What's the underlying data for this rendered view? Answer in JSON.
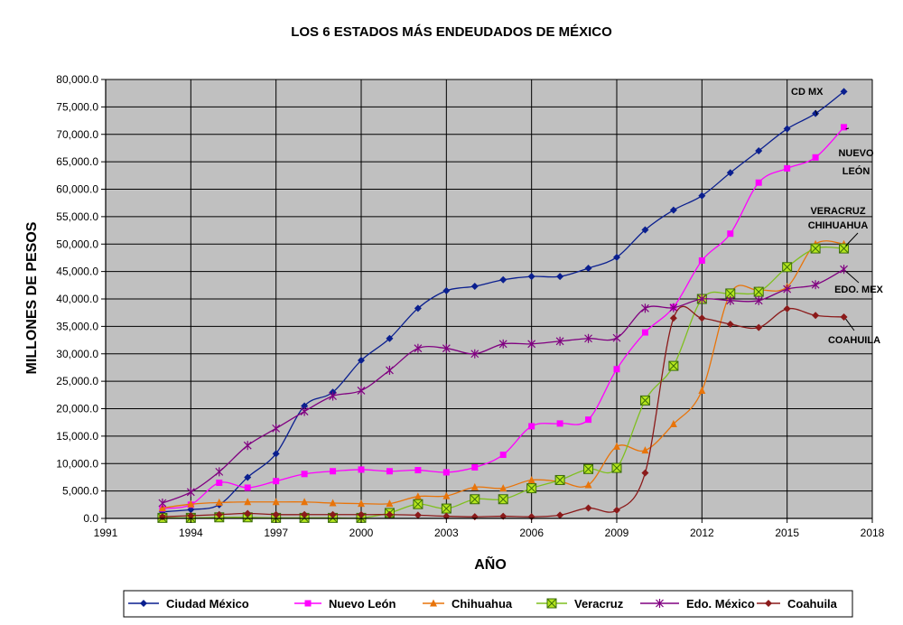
{
  "chart_data": {
    "type": "line",
    "title": "LOS 6 ESTADOS MÁS ENDEUDADOS DE MÉXICO",
    "xlabel": "AÑO",
    "ylabel": "MILLONES DE PESOS",
    "xlim": [
      1991,
      2018
    ],
    "ylim": [
      0,
      80000
    ],
    "x_ticks": [
      "1991",
      "1994",
      "1997",
      "2000",
      "2003",
      "2006",
      "2009",
      "2012",
      "2015",
      "2018"
    ],
    "y_ticks": [
      "0.0",
      "5,000.0",
      "10,000.0",
      "15,000.0",
      "20,000.0",
      "25,000.0",
      "30,000.0",
      "35,000.0",
      "40,000.0",
      "45,000.0",
      "50,000.0",
      "55,000.0",
      "60,000.0",
      "65,000.0",
      "70,000.0",
      "75,000.0",
      "80,000.0"
    ],
    "grid": true,
    "plot_background": "#c0c0c0",
    "legend_position": "bottom",
    "x": [
      1993,
      1994,
      1995,
      1996,
      1997,
      1998,
      1999,
      2000,
      2001,
      2002,
      2003,
      2004,
      2005,
      2006,
      2007,
      2008,
      2009,
      2010,
      2011,
      2012,
      2013,
      2014,
      2015,
      2016,
      2017
    ],
    "series": [
      {
        "name": "Ciudad México",
        "color": "#0a1f8f",
        "marker": "diamond",
        "values": [
          1200,
          1600,
          2500,
          7500,
          11800,
          20500,
          23000,
          28800,
          32800,
          38300,
          41500,
          42300,
          43500,
          44100,
          44100,
          45600,
          47600,
          52600,
          56200,
          58800,
          63000,
          67000,
          71000,
          73800,
          77800
        ]
      },
      {
        "name": "Nuevo León",
        "color": "#ff00ff",
        "marker": "square",
        "values": [
          1800,
          2500,
          6500,
          5600,
          6800,
          8100,
          8600,
          8900,
          8600,
          8800,
          8400,
          9300,
          11600,
          16800,
          17300,
          18000,
          27200,
          33900,
          38500,
          47000,
          51900,
          61200,
          63800,
          65800,
          71300
        ]
      },
      {
        "name": "Chihuahua",
        "color": "#e8740a",
        "marker": "triangle",
        "values": [
          1900,
          2600,
          2900,
          3000,
          3000,
          3000,
          2800,
          2700,
          2700,
          4000,
          4100,
          5700,
          5500,
          7000,
          6700,
          6100,
          13100,
          12400,
          17200,
          23300,
          41000,
          41600,
          42200,
          50000,
          50000
        ]
      },
      {
        "name": "Veracruz",
        "color": "#7fbf1f",
        "marker": "boxx",
        "values": [
          100,
          100,
          200,
          200,
          100,
          100,
          100,
          100,
          1000,
          2600,
          1800,
          3500,
          3500,
          5500,
          7000,
          9000,
          9200,
          21500,
          27800,
          40000,
          41000,
          41300,
          45800,
          49200,
          49200
        ]
      },
      {
        "name": "Edo. México",
        "color": "#800080",
        "marker": "star",
        "values": [
          2800,
          4800,
          8500,
          13300,
          16400,
          19500,
          22300,
          23300,
          27000,
          31000,
          31000,
          30000,
          31800,
          31800,
          32300,
          32800,
          32900,
          38300,
          38400,
          40000,
          39700,
          39700,
          41800,
          42600,
          45400
        ]
      },
      {
        "name": "Coahuila",
        "color": "#8b1a1a",
        "marker": "diamond",
        "values": [
          300,
          500,
          700,
          900,
          700,
          700,
          700,
          700,
          700,
          600,
          400,
          300,
          400,
          300,
          600,
          1900,
          1500,
          8300,
          36500,
          36500,
          35400,
          34800,
          38200,
          37000,
          36700
        ]
      }
    ],
    "annotations": [
      {
        "text": "CD MX",
        "series": 0,
        "x": 2016
      },
      {
        "text": "NUEVO\nLEÓN",
        "series": 1,
        "x": 2017
      },
      {
        "text": "VERACRUZ",
        "series": 3,
        "x": 2017
      },
      {
        "text": "CHIHUAHUA",
        "series": 2,
        "x": 2017
      },
      {
        "text": "EDO. MEX",
        "series": 4,
        "x": 2017
      },
      {
        "text": "COAHUILA",
        "series": 5,
        "x": 2017
      }
    ]
  }
}
